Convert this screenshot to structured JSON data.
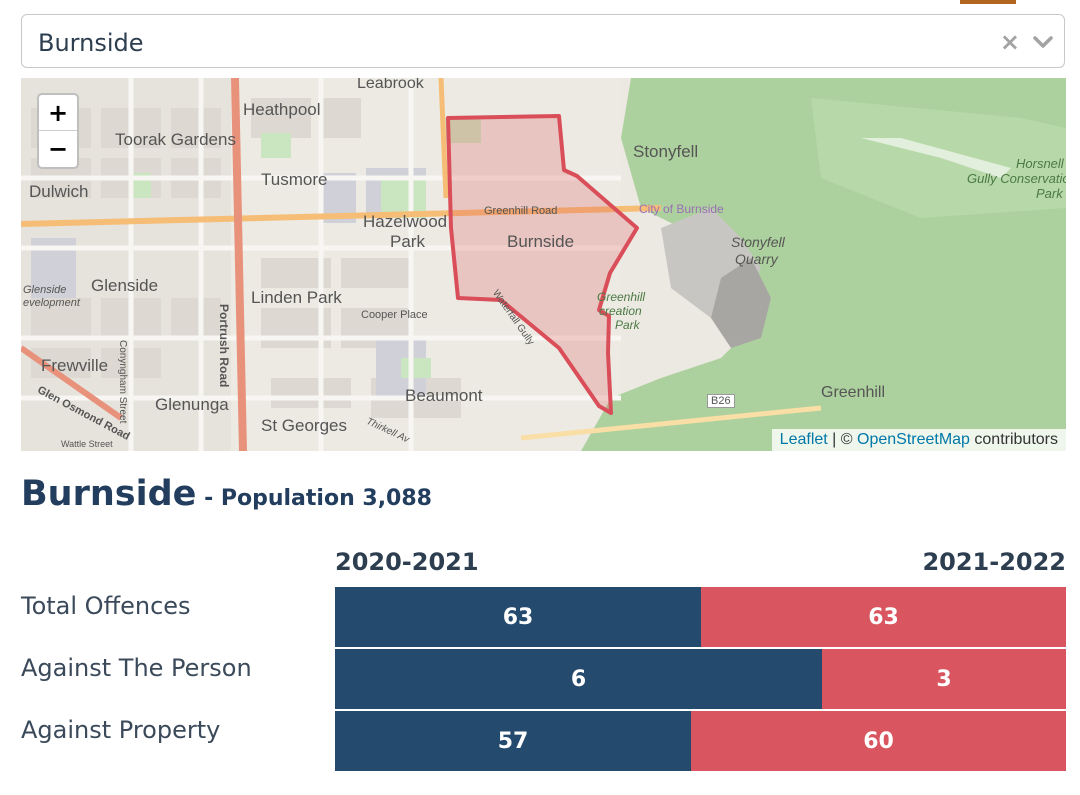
{
  "select": {
    "value": "Burnside",
    "clear_icon": "x-icon",
    "toggle_icon": "chevron-down-icon"
  },
  "map": {
    "zoom_in": "+",
    "zoom_out": "−",
    "attribution": {
      "leaflet": "Leaflet",
      "separator": " | © ",
      "osm": "OpenStreetMap",
      "suffix": " contributors"
    },
    "labels": {
      "leabrook": "Leabrook",
      "heathpool": "Heathpool",
      "toorak_gardens": "Toorak Gardens",
      "tusmore": "Tusmore",
      "dulwich": "Dulwich",
      "hazelwood": "Hazelwood",
      "park": "Park",
      "burnside": "Burnside",
      "greenhill_road": "Greenhill Road",
      "city_of_burnside": "City of Burnside",
      "stonyfell": "Stonyfell",
      "stonyfell_quarry_1": "Stonyfell",
      "stonyfell_quarry_2": "Quarry",
      "horsnell_1": "Horsnell",
      "horsnell_2": "Gully Conservatio",
      "horsnell_3": "Park",
      "glenside": "Glenside",
      "glenside_dev_1": "Glenside",
      "glenside_dev_2": "evelopment",
      "linden_park": "Linden Park",
      "cooper_place": "Cooper Place",
      "portrush_road": "Portrush Road",
      "greenhill_rec_1": "Greenhill",
      "greenhill_rec_2": "creation",
      "greenhill_rec_3": "Park",
      "frewville": "Frewville",
      "glen_osmond_road": "Glen Osmond Road",
      "conyngham": "Conyngham Street",
      "glenunga": "Glenunga",
      "beaumont": "Beaumont",
      "st_georges": "St Georges",
      "b26": "B26",
      "greenhill": "Greenhill",
      "waterfall": "Waterfall Gully",
      "wattle_street": "Wattle Street",
      "thirkell": "Thirkell Av"
    }
  },
  "heading": {
    "suburb": "Burnside",
    "separator": " - ",
    "population_label": "Population ",
    "population_value": "3,088"
  },
  "chart_data": {
    "type": "bar",
    "stacked": true,
    "orientation": "horizontal",
    "categories": [
      "Total Offences",
      "Against The Person",
      "Against Property"
    ],
    "series": [
      {
        "name": "2020-2021",
        "color": "#244a6d",
        "values": [
          63,
          6,
          57
        ]
      },
      {
        "name": "2021-2022",
        "color": "#d9555f",
        "values": [
          63,
          3,
          60
        ]
      }
    ],
    "grid": false
  }
}
